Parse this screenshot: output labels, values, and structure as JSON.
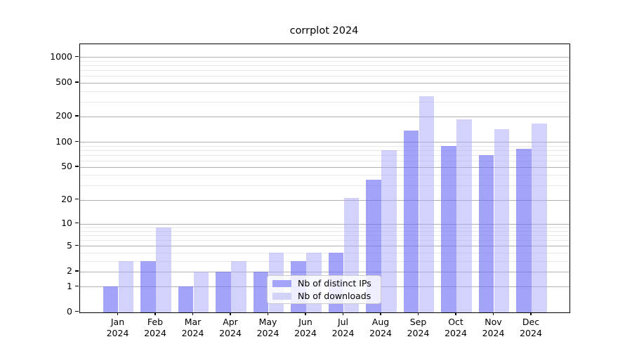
{
  "title": "corrplot 2024",
  "chart_data": {
    "type": "bar",
    "title": "corrplot 2024",
    "categories": [
      "Jan 2024",
      "Feb 2024",
      "Mar 2024",
      "Apr 2024",
      "May 2024",
      "Jun 2024",
      "Jul 2024",
      "Aug 2024",
      "Sep 2024",
      "Oct 2024",
      "Nov 2024",
      "Dec 2024"
    ],
    "series": [
      {
        "name": "Nb of distinct IPs",
        "color": "#a4a4f9",
        "fill": "rgba(107,107,243,0.62)",
        "values": [
          1,
          3,
          1,
          2,
          2,
          3,
          4,
          35,
          135,
          90,
          70,
          82
        ]
      },
      {
        "name": "Nb of downloads",
        "color": "#d3d3fa",
        "fill": "rgba(168,168,246,0.52)",
        "values": [
          3,
          9,
          2,
          3,
          4,
          4,
          21,
          80,
          350,
          185,
          142,
          165
        ]
      }
    ],
    "xlabel": "",
    "ylabel": "",
    "y_scale": "log10(value+1)",
    "y_ticks": [
      0,
      1,
      2,
      5,
      10,
      20,
      50,
      100,
      200,
      500,
      1000
    ],
    "y_minor_gridlines": [
      3,
      4,
      6,
      7,
      8,
      9,
      30,
      40,
      60,
      70,
      80,
      90,
      300,
      400,
      600,
      700,
      800,
      900
    ],
    "ylim_top_value": 1400,
    "grid": true,
    "legend_position": "inside-bottom-center",
    "axis_color": "#000000",
    "major_grid_color": "#b0b0b0",
    "minor_grid_color": "#e9e9e9"
  }
}
